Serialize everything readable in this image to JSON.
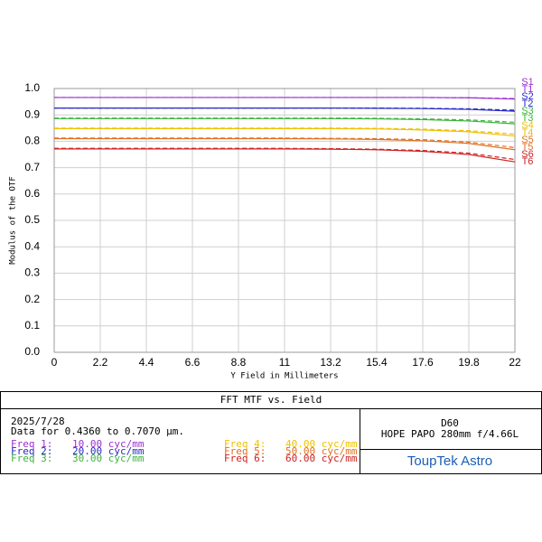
{
  "chart_data": {
    "type": "line",
    "x_label": "Y Field in Millimeters",
    "y_label": "Modulus of the OTF",
    "x": [
      0,
      2.2,
      4.4,
      6.6,
      8.8,
      11,
      13.2,
      15.4,
      17.6,
      19.8,
      22
    ],
    "xlim": [
      0,
      22
    ],
    "xticks": [
      0,
      2.2,
      4.4,
      6.6,
      8.8,
      11,
      13.2,
      15.4,
      17.6,
      19.8,
      22
    ],
    "ylim": [
      0,
      1
    ],
    "yticks": [
      {
        "value": 0,
        "label": "0.0"
      },
      0.1,
      0.2,
      0.3,
      0.4,
      0.5,
      0.6,
      0.7,
      0.8,
      0.9,
      {
        "value": 1,
        "label": "1.0"
      }
    ],
    "grid": true,
    "series": [
      {
        "name": "S1",
        "color": "#9b30d0",
        "dashed": true,
        "values": [
          0.966,
          0.966,
          0.966,
          0.966,
          0.966,
          0.966,
          0.966,
          0.966,
          0.966,
          0.965,
          0.962
        ]
      },
      {
        "name": "T1",
        "color": "#9b30d0",
        "dashed": false,
        "values": [
          0.966,
          0.966,
          0.966,
          0.966,
          0.966,
          0.966,
          0.966,
          0.966,
          0.966,
          0.965,
          0.96
        ]
      },
      {
        "name": "S2",
        "color": "#2828c8",
        "dashed": true,
        "values": [
          0.926,
          0.926,
          0.926,
          0.926,
          0.926,
          0.926,
          0.926,
          0.926,
          0.925,
          0.923,
          0.918
        ]
      },
      {
        "name": "T2",
        "color": "#2828c8",
        "dashed": false,
        "values": [
          0.926,
          0.926,
          0.926,
          0.926,
          0.926,
          0.926,
          0.926,
          0.925,
          0.924,
          0.921,
          0.914
        ]
      },
      {
        "name": "S3",
        "color": "#3cb43c",
        "dashed": true,
        "values": [
          0.888,
          0.888,
          0.888,
          0.888,
          0.888,
          0.888,
          0.888,
          0.887,
          0.885,
          0.881,
          0.872
        ]
      },
      {
        "name": "T3",
        "color": "#3cb43c",
        "dashed": false,
        "values": [
          0.886,
          0.886,
          0.886,
          0.886,
          0.886,
          0.886,
          0.886,
          0.885,
          0.882,
          0.877,
          0.866
        ]
      },
      {
        "name": "S4",
        "color": "#f0c000",
        "dashed": true,
        "values": [
          0.85,
          0.85,
          0.85,
          0.85,
          0.85,
          0.85,
          0.85,
          0.849,
          0.846,
          0.84,
          0.827
        ]
      },
      {
        "name": "T4",
        "color": "#f0c000",
        "dashed": false,
        "values": [
          0.848,
          0.848,
          0.848,
          0.848,
          0.848,
          0.848,
          0.848,
          0.847,
          0.843,
          0.836,
          0.82
        ]
      },
      {
        "name": "S5",
        "color": "#e07020",
        "dashed": true,
        "values": [
          0.812,
          0.812,
          0.812,
          0.812,
          0.812,
          0.812,
          0.811,
          0.81,
          0.806,
          0.797,
          0.776
        ]
      },
      {
        "name": "T5",
        "color": "#e07020",
        "dashed": false,
        "values": [
          0.81,
          0.81,
          0.81,
          0.81,
          0.81,
          0.81,
          0.809,
          0.807,
          0.802,
          0.792,
          0.768
        ]
      },
      {
        "name": "S6",
        "color": "#d02020",
        "dashed": true,
        "values": [
          0.773,
          0.773,
          0.773,
          0.773,
          0.773,
          0.773,
          0.772,
          0.77,
          0.765,
          0.755,
          0.731
        ]
      },
      {
        "name": "T6",
        "color": "#d02020",
        "dashed": false,
        "values": [
          0.771,
          0.771,
          0.771,
          0.771,
          0.771,
          0.771,
          0.77,
          0.768,
          0.762,
          0.75,
          0.722
        ]
      }
    ]
  },
  "footer": {
    "title": "FFT MTF vs. Field",
    "date": "2025/7/28",
    "range": "Data for 0.4360 to 0.7070 µm.",
    "frequencies": [
      {
        "label": "Freq 1:",
        "value": "10.00 cyc/mm",
        "color": "#9b30d0"
      },
      {
        "label": "Freq 2:",
        "value": "20.00 cyc/mm",
        "color": "#2828c8"
      },
      {
        "label": "Freq 3:",
        "value": "30.00 cyc/mm",
        "color": "#3cb43c"
      },
      {
        "label": "Freq 4:",
        "value": "40.00 cyc/mm",
        "color": "#f0c000"
      },
      {
        "label": "Freq 5:",
        "value": "50.00 cyc/mm",
        "color": "#e07020"
      },
      {
        "label": "Freq 6:",
        "value": "60.00 cyc/mm",
        "color": "#d02020"
      }
    ],
    "lens_id": "D60",
    "lens": "HOPE PAPO 280mm f/4.66L",
    "brand": "ToupTek Astro"
  }
}
